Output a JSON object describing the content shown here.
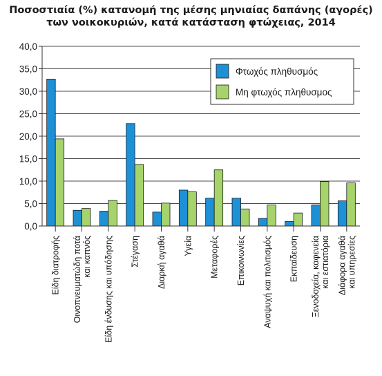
{
  "chart_data": {
    "type": "bar",
    "title_lines": [
      "Ποσοστιαία (%) κατανομή της μέσης μηνιαίας δαπάνης (αγορές)",
      "των νοικοκυριών, κατά κατάσταση φτώχειας, 2014"
    ],
    "xlabel": "",
    "ylabel": "",
    "ylim": [
      0,
      40
    ],
    "yticks": [
      "0,0",
      "5,0",
      "10,0",
      "15,0",
      "20,0",
      "25,0",
      "30,0",
      "35,0",
      "40,0"
    ],
    "grid": true,
    "legend_position": "top-right",
    "categories": [
      [
        "Είδη διατροφής"
      ],
      [
        "Οινοπνευματώδη ποτά",
        "και καπνός"
      ],
      [
        "Είδη ένδυσης και υπόδησης"
      ],
      [
        "Στέγαση"
      ],
      [
        "Διαρκή αγαθά"
      ],
      [
        "Υγεία"
      ],
      [
        "Μεταφορές"
      ],
      [
        "Επικοινωνίες"
      ],
      [
        "Αναψυχή και πολιτισμός"
      ],
      [
        "Εκπαίδευση"
      ],
      [
        "Ξενοδοχεία, καφενεία",
        "και εστιατόρια"
      ],
      [
        "Διάφορα αγαθά",
        "και υπηρεσίες"
      ]
    ],
    "series": [
      {
        "name": "Φτωχός πληθυσμός",
        "color": "#1e90d6",
        "values": [
          32.7,
          3.5,
          3.3,
          22.8,
          3.1,
          8.0,
          6.2,
          6.2,
          1.7,
          1.0,
          4.7,
          5.6
        ]
      },
      {
        "name": "Μη φτωχός πληθυσμος",
        "color": "#a6d36b",
        "values": [
          19.4,
          3.9,
          5.7,
          13.7,
          5.1,
          7.6,
          12.5,
          3.8,
          4.7,
          2.9,
          9.9,
          9.6
        ]
      }
    ]
  }
}
